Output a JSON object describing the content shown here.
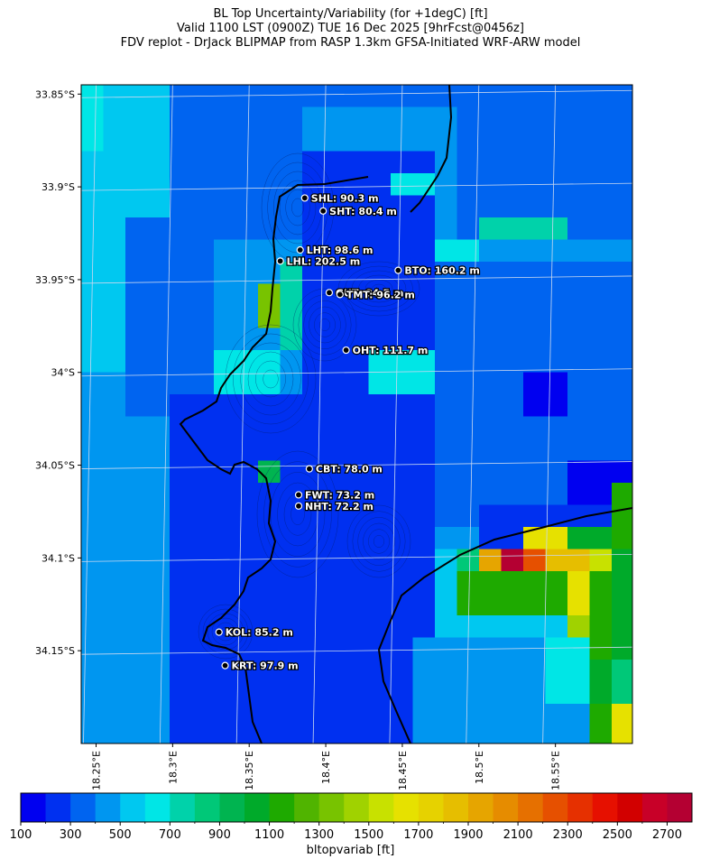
{
  "title": {
    "line1": "BL Top Uncertainty/Variability (for +1degC) [ft]",
    "line2": "Valid 1100 LST (0900Z) TUE 16 Dec 2025 [9hrFcst@0456z]",
    "line3": "FDV replot - DrJack BLIPMAP from RASP 1.3km GFSA-Initiated WRF-ARW model"
  },
  "axes": {
    "lat_ticks": [
      "33.85°S",
      "33.9°S",
      "33.95°S",
      "34°S",
      "34.05°S",
      "34.1°S",
      "34.15°S"
    ],
    "lat_values": [
      -33.85,
      -33.9,
      -33.95,
      -34.0,
      -34.05,
      -34.1,
      -34.15
    ],
    "lon_ticks": [
      "18.25°E",
      "18.3°E",
      "18.35°E",
      "18.4°E",
      "18.45°E",
      "18.5°E",
      "18.55°E"
    ],
    "lon_values": [
      18.25,
      18.3,
      18.35,
      18.4,
      18.45,
      18.5,
      18.55
    ],
    "lat_range": [
      -34.2,
      -33.845
    ],
    "lon_range": [
      18.245,
      18.605
    ]
  },
  "colorbar": {
    "label": "bltopvariab [ft]",
    "tick_labels": [
      "100",
      "300",
      "500",
      "700",
      "900",
      "1100",
      "1300",
      "1500",
      "1700",
      "1900",
      "2100",
      "2300",
      "2500",
      "2700"
    ],
    "min": 100,
    "max": 2800,
    "step": 100,
    "colors": [
      "#0000f0",
      "#0030f0",
      "#0064f0",
      "#0096f0",
      "#00c8f0",
      "#00e6e6",
      "#00d2aa",
      "#00c878",
      "#00b450",
      "#00aa2a",
      "#1eaa00",
      "#50b400",
      "#78c300",
      "#a0d200",
      "#c8e100",
      "#e6e100",
      "#e6d200",
      "#e6be00",
      "#e6a500",
      "#e68c00",
      "#e67000",
      "#e65000",
      "#e63000",
      "#e61000",
      "#d20000",
      "#c80028",
      "#b40032"
    ]
  },
  "stations": [
    {
      "label": "SHL: 90.3 m",
      "lat": -33.906,
      "lon": 18.391
    },
    {
      "label": "SHT: 80.4 m",
      "lat": -33.913,
      "lon": 18.403
    },
    {
      "label": "LHT: 98.6 m",
      "lat": -33.934,
      "lon": 18.388
    },
    {
      "label": "LHL: 202.5 m",
      "lat": -33.94,
      "lon": 18.375
    },
    {
      "label": "BTO: 160.2 m",
      "lat": -33.945,
      "lon": 18.452
    },
    {
      "label": "GUT: 84.5 m",
      "lat": -33.957,
      "lon": 18.407
    },
    {
      "label": "TMT: 96.2 m",
      "lat": -33.958,
      "lon": 18.414
    },
    {
      "label": "OHT: 111.7 m",
      "lat": -33.988,
      "lon": 18.418
    },
    {
      "label": "CBT: 78.0 m",
      "lat": -34.052,
      "lon": 18.394
    },
    {
      "label": "FWT: 73.2 m",
      "lat": -34.066,
      "lon": 18.387
    },
    {
      "label": "NHT: 72.2 m",
      "lat": -34.072,
      "lon": 18.387
    },
    {
      "label": "KOL: 85.2 m",
      "lat": -34.14,
      "lon": 18.335
    },
    {
      "label": "KRT: 97.9 m",
      "lat": -34.158,
      "lon": 18.339
    }
  ]
}
